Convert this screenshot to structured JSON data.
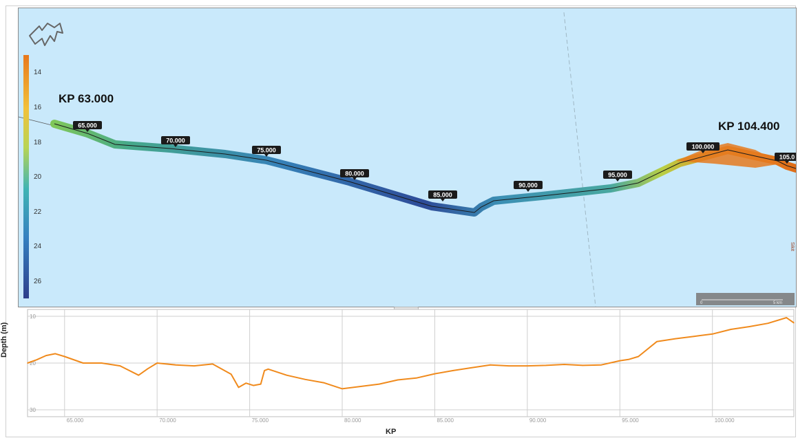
{
  "map": {
    "start_label": "KP 63.000",
    "end_label": "KP 104.400",
    "kp_markers": [
      "65.000",
      "70.000",
      "75.000",
      "80.000",
      "85.000",
      "90.000",
      "95.000",
      "100.000",
      "105.0"
    ],
    "legend_ticks": [
      "14",
      "16",
      "18",
      "20",
      "22",
      "24",
      "26"
    ],
    "scale_bar": {
      "start": "0",
      "end": "5 km"
    },
    "side_label": "Sikit",
    "colors": {
      "sea": "#c9e9fb",
      "shallow": "#e8781c",
      "deep": "#34509b"
    }
  },
  "profile": {
    "y_axis_label": "Depth (m)",
    "x_axis_label": "KP",
    "y_ticks": [
      "10",
      "20",
      "30"
    ],
    "x_ticks": [
      "65.000",
      "70.000",
      "75.000",
      "80.000",
      "85.000",
      "90.000",
      "95.000",
      "100.000"
    ],
    "collapse_handle": "▾",
    "line_color": "#f08a1c"
  },
  "chart_data": {
    "type": "line",
    "title": "",
    "xlabel": "KP",
    "ylabel": "Depth (m)",
    "xlim": [
      63,
      104.4
    ],
    "ylim": [
      30,
      10
    ],
    "grid": true,
    "series": [
      {
        "x": [
          63.0,
          63.5,
          64.0,
          64.5,
          65.0,
          66.0,
          67.0,
          68.0,
          69.0,
          69.5,
          70.0,
          71.0,
          72.0,
          73.0,
          74.0,
          74.4,
          74.8,
          75.2,
          75.6,
          75.8,
          76.0,
          77.0,
          78.0,
          79.0,
          80.0,
          81.0,
          82.0,
          83.0,
          84.0,
          85.0,
          86.0,
          87.0,
          88.0,
          89.0,
          90.0,
          91.0,
          92.0,
          93.0,
          94.0,
          95.0,
          95.5,
          96.0,
          97.0,
          98.0,
          99.0,
          100.0,
          101.0,
          102.0,
          103.0,
          104.0,
          104.4
        ],
        "y": [
          20.0,
          19.3,
          18.4,
          18.0,
          18.6,
          20.0,
          20.0,
          20.6,
          22.6,
          21.2,
          20.0,
          20.4,
          20.6,
          20.2,
          22.4,
          25.2,
          24.3,
          24.8,
          24.5,
          21.6,
          21.3,
          22.6,
          23.5,
          24.2,
          25.5,
          25.0,
          24.5,
          23.6,
          23.2,
          22.3,
          21.6,
          21.0,
          20.4,
          20.6,
          20.6,
          20.5,
          20.3,
          20.5,
          20.4,
          19.5,
          19.2,
          18.6,
          15.4,
          14.8,
          14.3,
          13.8,
          12.8,
          12.2,
          11.5,
          10.3,
          11.4
        ]
      }
    ]
  }
}
